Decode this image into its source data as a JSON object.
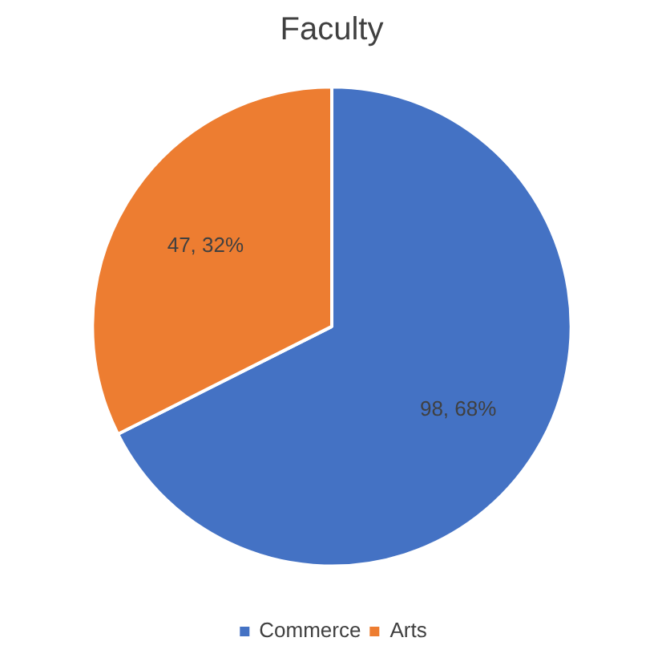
{
  "chart_data": {
    "type": "pie",
    "title": "Faculty",
    "categories": [
      "Commerce",
      "Arts"
    ],
    "values": [
      98,
      47
    ],
    "colors": [
      "#4472c4",
      "#ed7d31"
    ],
    "value_labels": [
      "98, 68%",
      "47, 32%"
    ],
    "legend": "bottom"
  }
}
